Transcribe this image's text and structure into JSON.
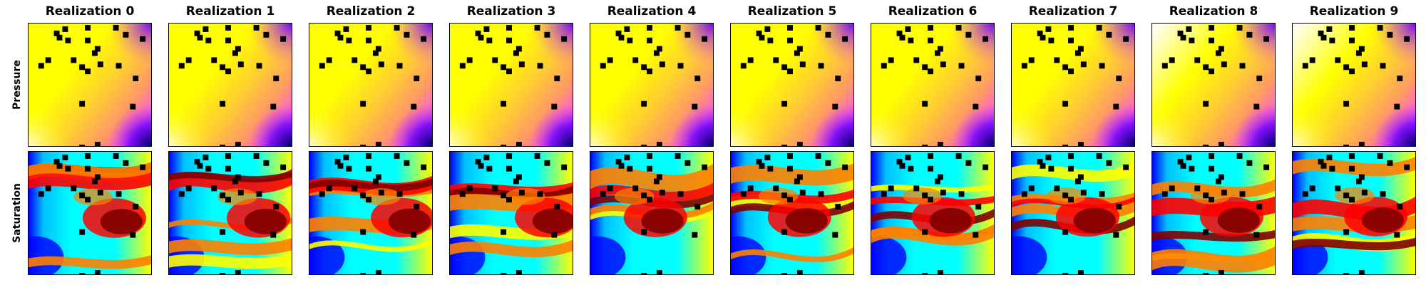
{
  "columns": [
    "Realization 0",
    "Realization 1",
    "Realization 2",
    "Realization 3",
    "Realization 4",
    "Realization 5",
    "Realization 6",
    "Realization 7",
    "Realization 8",
    "Realization 9"
  ],
  "rows": [
    "Pressure",
    "Saturation"
  ],
  "pressure_colormap": [
    "#fffde8",
    "#ffff00",
    "#ffcc33",
    "#ff9966",
    "#ff66cc",
    "#cc33ff",
    "#6600ff",
    "#000066"
  ],
  "saturation_colormap": [
    "#00008b",
    "#0000ff",
    "#00bfff",
    "#00ffff",
    "#ffff00",
    "#ff8000",
    "#ff0000",
    "#800000"
  ],
  "marker_color": "#000000"
}
